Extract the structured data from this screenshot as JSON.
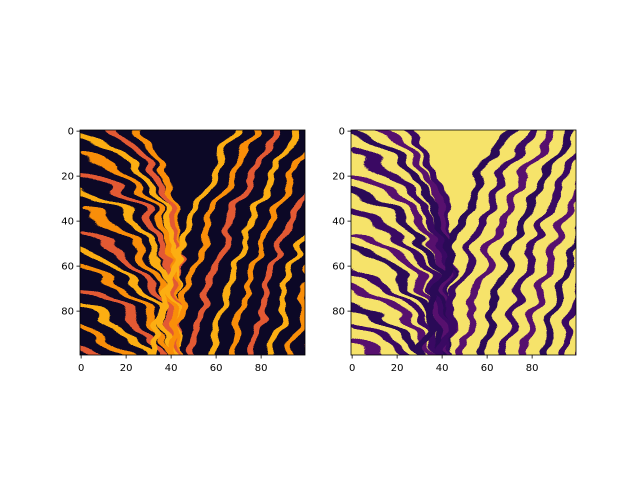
{
  "figure": {
    "background": "#ffffff"
  },
  "chart_data": [
    {
      "type": "heatmap",
      "colormap": "inferno",
      "description_of_values": "zebra stripe pattern, bright stripes on dark background",
      "xlim": [
        0,
        99
      ],
      "ylim": [
        99,
        0
      ],
      "x_ticks": [
        0,
        20,
        40,
        60,
        80
      ],
      "y_ticks": [
        0,
        20,
        40,
        60,
        80
      ],
      "x_tick_labels": [
        "0",
        "20",
        "40",
        "60",
        "80"
      ],
      "y_tick_labels": [
        "0",
        "20",
        "40",
        "60",
        "80"
      ],
      "title": "",
      "xlabel": "",
      "ylabel": "",
      "grid": false
    },
    {
      "type": "heatmap",
      "colormap": "inferno",
      "description_of_values": "inverted zebra stripe pattern, dark stripes on bright background",
      "xlim": [
        0,
        99
      ],
      "ylim": [
        99,
        0
      ],
      "x_ticks": [
        0,
        20,
        40,
        60,
        80
      ],
      "y_ticks": [
        0,
        20,
        40,
        60,
        80
      ],
      "x_tick_labels": [
        "0",
        "20",
        "40",
        "60",
        "80"
      ],
      "y_tick_labels": [
        "0",
        "20",
        "40",
        "60",
        "80"
      ],
      "title": "",
      "xlabel": "",
      "ylabel": "",
      "grid": false
    }
  ]
}
